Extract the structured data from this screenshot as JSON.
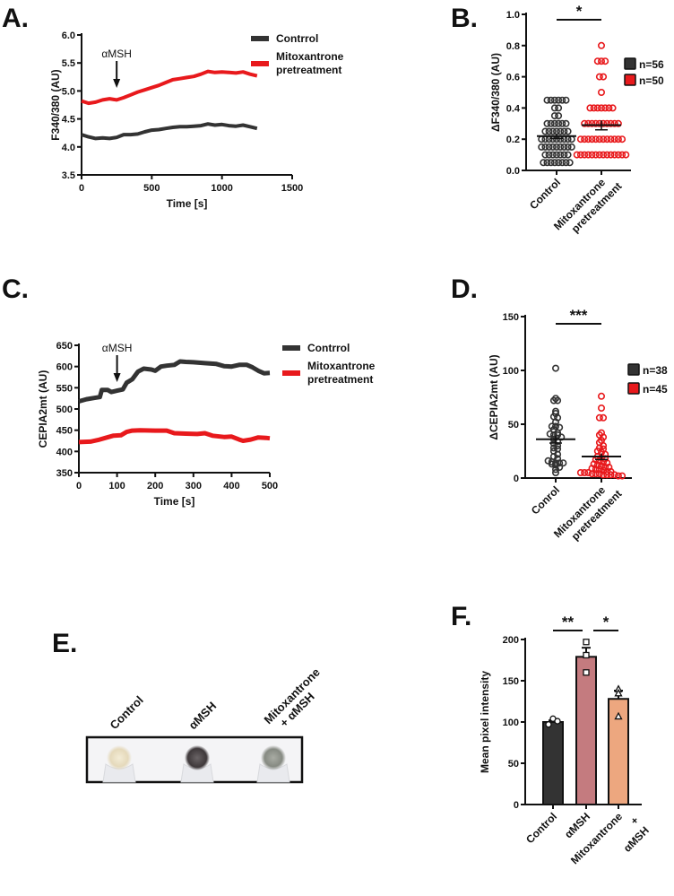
{
  "colors": {
    "dark": "#333333",
    "red": "#e8191c",
    "f_control": "#333333",
    "f_amsh": "#c47b7f",
    "f_mitox": "#eda77f"
  },
  "chart_data": [
    {
      "panel": "A.",
      "type": "line",
      "xlabel": "Time [s]",
      "ylabel": "F340/380 (AU)",
      "xlim": [
        0,
        1500
      ],
      "ylim": [
        3.5,
        6.0
      ],
      "xticks": [
        "0",
        "500",
        "1000",
        "1500"
      ],
      "yticks": [
        "3.5",
        "4.0",
        "4.5",
        "5.0",
        "5.5",
        "6.0"
      ],
      "annotation": {
        "text": "αMSH",
        "x": 250
      },
      "legend_position": "right",
      "series": [
        {
          "name": "Contrrol",
          "color": "#333333",
          "x": [
            0,
            50,
            100,
            150,
            200,
            250,
            300,
            350,
            400,
            450,
            500,
            550,
            600,
            650,
            700,
            750,
            800,
            850,
            900,
            950,
            1000,
            1050,
            1100,
            1150,
            1200,
            1250
          ],
          "y": [
            4.22,
            4.18,
            4.15,
            4.16,
            4.15,
            4.17,
            4.22,
            4.22,
            4.23,
            4.27,
            4.3,
            4.31,
            4.33,
            4.35,
            4.36,
            4.36,
            4.37,
            4.38,
            4.41,
            4.39,
            4.4,
            4.38,
            4.37,
            4.39,
            4.36,
            4.33
          ]
        },
        {
          "name": "Mitoxantrone pretreatment",
          "color": "#e8191c",
          "x": [
            0,
            50,
            100,
            150,
            200,
            250,
            300,
            350,
            400,
            450,
            500,
            550,
            600,
            650,
            700,
            750,
            800,
            850,
            900,
            950,
            1000,
            1050,
            1100,
            1150,
            1200,
            1250
          ],
          "y": [
            4.82,
            4.78,
            4.8,
            4.84,
            4.86,
            4.84,
            4.88,
            4.93,
            4.98,
            5.02,
            5.06,
            5.1,
            5.15,
            5.2,
            5.22,
            5.24,
            5.26,
            5.3,
            5.35,
            5.33,
            5.34,
            5.33,
            5.32,
            5.34,
            5.3,
            5.27
          ]
        }
      ]
    },
    {
      "panel": "B.",
      "type": "scatter",
      "ylabel": "ΔF340/380 (AU)",
      "ylim": [
        0,
        1.0
      ],
      "yticks": [
        "0.0",
        "0.2",
        "0.4",
        "0.6",
        "0.8",
        "1.0"
      ],
      "categories": [
        "Control",
        "Mitoxantrone pretreatment"
      ],
      "significance": "*",
      "legend_position": "right",
      "series": [
        {
          "name": "n=56",
          "color": "#333333",
          "mean": 0.22,
          "sem": 0.015,
          "values": [
            0.05,
            0.05,
            0.05,
            0.05,
            0.05,
            0.05,
            0.05,
            0.05,
            0.1,
            0.1,
            0.1,
            0.1,
            0.1,
            0.1,
            0.1,
            0.15,
            0.15,
            0.15,
            0.15,
            0.15,
            0.15,
            0.15,
            0.15,
            0.15,
            0.2,
            0.2,
            0.2,
            0.2,
            0.2,
            0.2,
            0.2,
            0.2,
            0.2,
            0.25,
            0.25,
            0.25,
            0.25,
            0.25,
            0.25,
            0.25,
            0.3,
            0.3,
            0.3,
            0.3,
            0.3,
            0.3,
            0.35,
            0.35,
            0.4,
            0.4,
            0.45,
            0.45,
            0.45,
            0.45,
            0.45,
            0.45
          ]
        },
        {
          "name": "n=50",
          "color": "#e8191c",
          "mean": 0.29,
          "sem": 0.03,
          "values": [
            0.1,
            0.1,
            0.1,
            0.1,
            0.1,
            0.1,
            0.1,
            0.1,
            0.1,
            0.1,
            0.1,
            0.1,
            0.1,
            0.1,
            0.2,
            0.2,
            0.2,
            0.2,
            0.2,
            0.2,
            0.2,
            0.2,
            0.2,
            0.2,
            0.2,
            0.2,
            0.3,
            0.3,
            0.3,
            0.3,
            0.3,
            0.3,
            0.3,
            0.3,
            0.3,
            0.3,
            0.4,
            0.4,
            0.4,
            0.4,
            0.4,
            0.4,
            0.4,
            0.5,
            0.6,
            0.6,
            0.7,
            0.7,
            0.7,
            0.8
          ]
        }
      ]
    },
    {
      "panel": "C.",
      "type": "line",
      "xlabel": "Time [s]",
      "ylabel": "CEPIA2mt (AU)",
      "xlim": [
        0,
        500
      ],
      "ylim": [
        350,
        650
      ],
      "xticks": [
        "0",
        "100",
        "200",
        "300",
        "400",
        "500"
      ],
      "yticks": [
        "350",
        "400",
        "450",
        "500",
        "550",
        "600",
        "650"
      ],
      "annotation": {
        "text": "αMSH",
        "x": 100
      },
      "legend_position": "right",
      "series": [
        {
          "name": "Contrrol",
          "color": "#333333",
          "x": [
            0,
            20,
            40,
            55,
            60,
            75,
            85,
            100,
            115,
            125,
            140,
            155,
            170,
            190,
            200,
            215,
            230,
            250,
            265,
            280,
            300,
            330,
            360,
            380,
            400,
            420,
            440,
            455,
            470,
            485,
            500
          ],
          "y": [
            518,
            523,
            526,
            528,
            545,
            545,
            540,
            543,
            546,
            562,
            570,
            588,
            595,
            593,
            590,
            600,
            602,
            604,
            612,
            611,
            610,
            608,
            606,
            601,
            600,
            604,
            604,
            598,
            590,
            584,
            585
          ]
        },
        {
          "name": "Mitoxantrone pretreatment",
          "color": "#e8191c",
          "x": [
            0,
            30,
            50,
            70,
            90,
            110,
            125,
            140,
            160,
            200,
            230,
            250,
            280,
            310,
            330,
            350,
            380,
            400,
            420,
            430,
            450,
            470,
            490,
            500
          ],
          "y": [
            422,
            423,
            427,
            432,
            437,
            438,
            446,
            449,
            450,
            449,
            449,
            443,
            442,
            441,
            443,
            437,
            434,
            435,
            428,
            425,
            428,
            433,
            432,
            431
          ]
        }
      ]
    },
    {
      "panel": "D.",
      "type": "scatter",
      "ylabel": "ΔCEPIA2mt (AU)",
      "ylim": [
        0,
        150
      ],
      "yticks": [
        "0",
        "50",
        "100",
        "150"
      ],
      "categories": [
        "Conrol",
        "Mitoxantrone pretreatment"
      ],
      "significance": "***",
      "legend_position": "right",
      "series": [
        {
          "name": "n=38",
          "color": "#333333",
          "mean": 36,
          "sem": 3.5,
          "values": [
            102,
            74,
            72,
            72,
            62,
            60,
            57,
            56,
            52,
            48,
            48,
            47,
            45,
            42,
            41,
            40,
            40,
            38,
            36,
            34,
            32,
            30,
            28,
            27,
            25,
            22,
            20,
            18,
            16,
            15,
            14,
            14,
            14,
            13,
            12,
            10,
            8,
            5
          ]
        },
        {
          "name": "n=45",
          "color": "#e8191c",
          "mean": 20,
          "sem": 2.8,
          "values": [
            76,
            65,
            56,
            56,
            42,
            40,
            38,
            35,
            33,
            30,
            28,
            27,
            25,
            24,
            22,
            20,
            19,
            18,
            17,
            16,
            15,
            14,
            13,
            12,
            11,
            10,
            10,
            9,
            8,
            8,
            7,
            6,
            6,
            5,
            5,
            5,
            4,
            4,
            4,
            3,
            3,
            3,
            3,
            2,
            2
          ]
        }
      ]
    },
    {
      "panel": "F.",
      "type": "bar",
      "ylabel": "Mean pixel intensity",
      "ylim": [
        0,
        200
      ],
      "yticks": [
        "0",
        "50",
        "100",
        "150",
        "200"
      ],
      "categories": [
        "Control",
        "αMSH",
        "Mitoxantrone + αMSH"
      ],
      "values": [
        100,
        179,
        128
      ],
      "sem": [
        2,
        11,
        10
      ],
      "points": [
        [
          97,
          104,
          101
        ],
        [
          197,
          160,
          181
        ],
        [
          140,
          135,
          107
        ]
      ],
      "point_markers": [
        "circle",
        "square",
        "triangle"
      ],
      "colors": [
        "#333333",
        "#c47b7f",
        "#eda77f"
      ],
      "significance": [
        {
          "between": [
            0,
            1
          ],
          "label": "**"
        },
        {
          "between": [
            1,
            2
          ],
          "label": "*"
        }
      ]
    }
  ],
  "panel_e": {
    "label": "E.",
    "lanes": [
      {
        "label": "Control",
        "pellet_color": "#e8dcc0"
      },
      {
        "label": "αMSH",
        "pellet_color": "#4a4446"
      },
      {
        "label": "Mitoxantrone + αMSH",
        "label_line1": "Mitoxantrone",
        "label_line2": "+ αMSH",
        "pellet_color": "#8d9089"
      }
    ]
  }
}
